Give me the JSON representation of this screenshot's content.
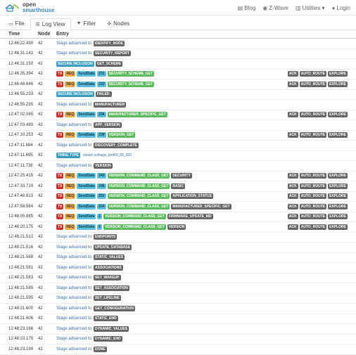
{
  "brand": {
    "line1": "open",
    "line2": "smarthouse"
  },
  "nav": [
    {
      "icon": "blog-icon",
      "label": "Blog"
    },
    {
      "icon": "zwave-icon",
      "label": "Z-Wave"
    },
    {
      "icon": "chart-icon",
      "label": "Utilities ▾"
    },
    {
      "icon": "user-icon",
      "label": "Login"
    }
  ],
  "tabs": [
    {
      "label": "File",
      "active": false
    },
    {
      "label": "Log View",
      "active": true
    },
    {
      "label": "Filter",
      "active": false
    },
    {
      "label": "Nodes",
      "active": false
    }
  ],
  "columns": {
    "time": "Time",
    "node": "Node",
    "entry": "Entry"
  },
  "stage_label": "Stage advanced to",
  "rows": [
    {
      "time": "12:46:22.430",
      "node": "42",
      "kind": "stage",
      "value": "IDENTIFY_NODE"
    },
    {
      "time": "12:46:31.142",
      "node": "42",
      "kind": "stage",
      "value": "SECURITY_REPORT"
    },
    {
      "time": "12:46:31.150",
      "node": "42",
      "kind": "sec",
      "value": "GET_SCHEME"
    },
    {
      "time": "12:46:35.394",
      "node": "42",
      "kind": "msg",
      "num": "231",
      "cmd": "SECURITY_SCHEME_GET",
      "extra": ""
    },
    {
      "time": "12:46:48.646",
      "node": "42",
      "kind": "msg",
      "num": "233",
      "cmd": "SECURITY_SCHEME_GET",
      "extra": ""
    },
    {
      "time": "12:46:55.233",
      "node": "42",
      "kind": "sec",
      "value": "FAILED."
    },
    {
      "time": "12:46:55.235",
      "node": "42",
      "kind": "stage",
      "value": "MANUFACTURER"
    },
    {
      "time": "12:47:02.085",
      "node": "42",
      "kind": "msg",
      "num": "236",
      "cmd": "MANUFACTURER_SPECIFIC_GET",
      "extra": ""
    },
    {
      "time": "12:47:03.480",
      "node": "42",
      "kind": "stage",
      "value": "APP_VERSION"
    },
    {
      "time": "12:47:10.253",
      "node": "42",
      "kind": "msg",
      "num": "238",
      "cmd": "VERSION_GET",
      "extra": ""
    },
    {
      "time": "12:47:11.684",
      "node": "42",
      "kind": "stage",
      "value": "DISCOVERY_COMPLETE"
    },
    {
      "time": "12:47:11.695",
      "node": "42",
      "kind": "thing",
      "value": "zwave:schlage_be469_00_000"
    },
    {
      "time": "12:47:11.738",
      "node": "42",
      "kind": "stage",
      "value": "VERSION"
    },
    {
      "time": "12:47:25.415",
      "node": "42",
      "kind": "msg",
      "num": "243",
      "cmd": "VERSION_COMMAND_CLASS_GET",
      "extra": "SECURITY"
    },
    {
      "time": "12:47:33.719",
      "node": "42",
      "kind": "msg",
      "num": "246",
      "cmd": "VERSION_COMMAND_CLASS_GET",
      "extra": "BASIC"
    },
    {
      "time": "12:47:48.613",
      "node": "42",
      "kind": "msg",
      "num": "250",
      "cmd": "VERSION_COMMAND_CLASS_GET",
      "extra": "APPLICATION_STATUS"
    },
    {
      "time": "12:47:58.564",
      "node": "42",
      "kind": "msg",
      "num": "254",
      "cmd": "VERSION_COMMAND_CLASS_GET",
      "extra": "MANUFACTURER_SPECIFIC_GET"
    },
    {
      "time": "12:48:05.885",
      "node": "42",
      "kind": "msg",
      "num": "1",
      "cmd": "VERSION_COMMAND_CLASS_GET",
      "extra": "FIRMWARE_UPDATE_MD"
    },
    {
      "time": "12:48:20.175",
      "node": "42",
      "kind": "msg",
      "num": "6",
      "cmd": "VERSION_COMMAND_CLASS_GET",
      "extra": "VERSION"
    },
    {
      "time": "12:48:21.512",
      "node": "42",
      "kind": "stage",
      "value": "ENDPOINTS"
    },
    {
      "time": "12:48:21.516",
      "node": "42",
      "kind": "stage",
      "value": "UPDATE_DATABASE"
    },
    {
      "time": "12:48:21.568",
      "node": "42",
      "kind": "stage",
      "value": "STATIC_VALUES"
    },
    {
      "time": "12:48:21.581",
      "node": "42",
      "kind": "stage",
      "value": "ASSOCIATIONS"
    },
    {
      "time": "12:48:21.583",
      "node": "42",
      "kind": "stage",
      "value": "SET_WAKEUP"
    },
    {
      "time": "12:48:21.585",
      "node": "42",
      "kind": "stage",
      "value": "SET_ASSOCIATION"
    },
    {
      "time": "12:48:21.595",
      "node": "42",
      "kind": "stage",
      "value": "SET_LIFELINE"
    },
    {
      "time": "12:48:21.600",
      "node": "42",
      "kind": "stage",
      "value": "GET_CONFIGURATION"
    },
    {
      "time": "12:48:21.606",
      "node": "42",
      "kind": "stage",
      "value": "STATIC_END"
    },
    {
      "time": "12:48:23.166",
      "node": "42",
      "kind": "stage",
      "value": "DYNAMIC_VALUES"
    },
    {
      "time": "12:48:23.175",
      "node": "42",
      "kind": "stage",
      "value": "DYNAMIC_END"
    },
    {
      "time": "12:48:23.199",
      "node": "42",
      "kind": "stage",
      "value": "DONE"
    }
  ],
  "badges": {
    "tx": "TX",
    "req": "REQ",
    "senddata": "SendData",
    "secure_inclusion": "SECURE INCLUSION",
    "thing_type": "THING TYPE",
    "ack": "ACK",
    "auto_route": "AUTO_ROUTE",
    "explore": "EXPLORE"
  },
  "colors": {
    "accent": "#3a89c9",
    "tx": "#c9302c",
    "req": "#f0ad4e",
    "senddata": "#5bc0de",
    "command": "#5cb85c",
    "value": "#666666"
  }
}
